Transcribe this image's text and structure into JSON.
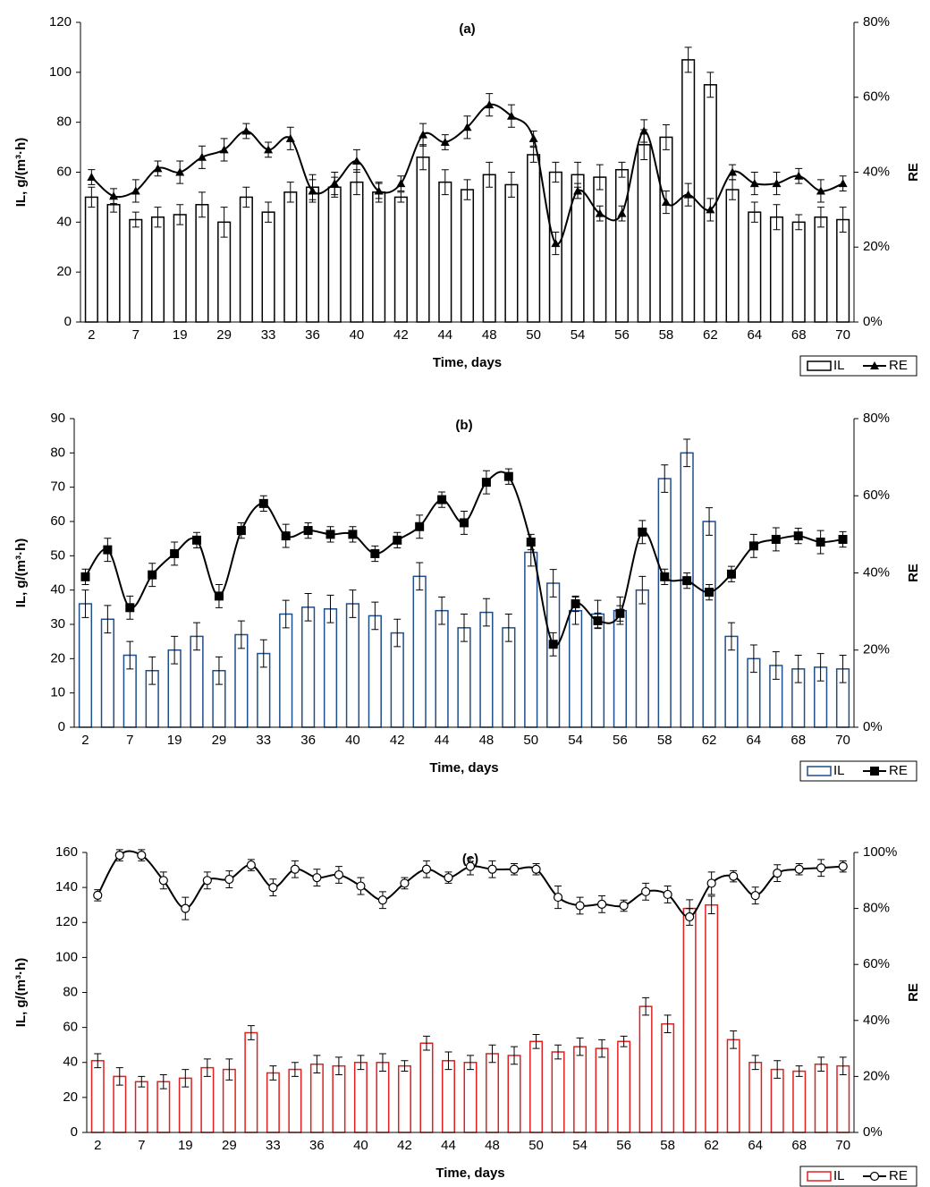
{
  "chart_data": [
    {
      "type": "bar",
      "title": "(a)",
      "x_label": "Time, days",
      "y_label": "IL, g/(m³·h)",
      "y2_label": "RE",
      "categories": [
        "2",
        null,
        "7",
        null,
        "19",
        null,
        "29",
        null,
        "33",
        null,
        "36",
        null,
        "40",
        null,
        "42",
        null,
        "44",
        null,
        "48",
        null,
        "50",
        null,
        "54",
        null,
        "56",
        null,
        "58",
        null,
        "62",
        null,
        "64",
        null,
        "68",
        null,
        "70"
      ],
      "ylim": [
        0,
        120
      ],
      "yticks": [
        0,
        20,
        40,
        60,
        80,
        100,
        120
      ],
      "y2lim": [
        0,
        80
      ],
      "y2ticks": [
        {
          "value": 0,
          "label": "0%"
        },
        {
          "value": 20,
          "label": "20%"
        },
        {
          "value": 40,
          "label": "40%"
        },
        {
          "value": 60,
          "label": "60%"
        },
        {
          "value": 80,
          "label": "80%"
        }
      ],
      "legend": "lower right",
      "series": [
        {
          "name": "IL",
          "type": "bar",
          "color": "#000000",
          "values": [
            50,
            47,
            41,
            42,
            43,
            47,
            40,
            50,
            44,
            52,
            54,
            54,
            56,
            52,
            50,
            66,
            56,
            53,
            59,
            55,
            67,
            60,
            59,
            58,
            61,
            71,
            74,
            105,
            95,
            53,
            44,
            42,
            40,
            42,
            41
          ],
          "errors": [
            4,
            3,
            3,
            4,
            4,
            5,
            6,
            4,
            4,
            4,
            5,
            4,
            5,
            4,
            2,
            5,
            5,
            4,
            5,
            5,
            3,
            4,
            5,
            5,
            3,
            6,
            5,
            5,
            5,
            4,
            4,
            5,
            3,
            4,
            5
          ]
        },
        {
          "name": "RE",
          "type": "line",
          "axis": "y2",
          "color": "#000000",
          "marker": "triangle",
          "values": [
            38.7,
            33.6,
            35,
            41,
            40,
            44,
            46,
            51,
            46,
            49,
            35,
            37,
            43,
            35,
            37,
            50,
            48,
            52,
            58,
            55,
            49,
            21,
            35,
            29,
            29,
            51,
            32,
            34,
            30,
            40,
            37,
            37,
            39,
            35,
            37
          ],
          "errors": [
            2,
            2,
            3,
            2,
            3,
            3,
            3,
            2,
            2,
            3,
            3,
            3,
            3,
            2,
            2,
            3,
            2,
            3,
            3,
            3,
            2,
            3,
            2,
            2,
            2,
            3,
            3,
            3,
            3,
            2,
            3,
            3,
            2,
            3,
            2
          ]
        }
      ]
    },
    {
      "type": "bar",
      "title": "(b)",
      "x_label": "Time, days",
      "y_label": "IL, g/(m³·h)",
      "y2_label": "RE",
      "categories": [
        "2",
        null,
        "7",
        null,
        "19",
        null,
        "29",
        null,
        "33",
        null,
        "36",
        null,
        "40",
        null,
        "42",
        null,
        "44",
        null,
        "48",
        null,
        "50",
        null,
        "54",
        null,
        "56",
        null,
        "58",
        null,
        "62",
        null,
        "64",
        null,
        "68",
        null,
        "70"
      ],
      "ylim": [
        0,
        90
      ],
      "yticks": [
        0,
        10,
        20,
        30,
        40,
        50,
        60,
        70,
        80,
        90
      ],
      "y2lim": [
        0,
        80
      ],
      "y2ticks": [
        {
          "value": 0,
          "label": "0%"
        },
        {
          "value": 20,
          "label": "20%"
        },
        {
          "value": 40,
          "label": "40%"
        },
        {
          "value": 60,
          "label": "60%"
        },
        {
          "value": 80,
          "label": "80%"
        }
      ],
      "legend": "lower right",
      "series": [
        {
          "name": "IL",
          "type": "bar",
          "color": "#1f4e8c",
          "values": [
            36,
            31.5,
            21,
            16.5,
            22.5,
            26.5,
            16.5,
            27,
            21.5,
            33,
            35,
            34.5,
            36,
            32.5,
            27.5,
            44,
            34,
            29,
            33.5,
            29,
            51,
            42,
            34,
            33,
            34,
            40,
            72.5,
            80,
            60,
            26.5,
            20,
            18,
            17,
            17.5,
            17
          ],
          "errors": [
            4,
            4,
            4,
            4,
            4,
            4,
            4,
            4,
            4,
            4,
            4,
            4,
            4,
            4,
            4,
            4,
            4,
            4,
            4,
            4,
            4,
            4,
            4,
            4,
            4,
            4,
            4,
            4,
            4,
            4,
            4,
            4,
            4,
            4,
            4
          ]
        },
        {
          "name": "RE",
          "type": "line",
          "axis": "y2",
          "color": "#000000",
          "marker": "square",
          "values": [
            39,
            46,
            31,
            39.5,
            45,
            48.5,
            34,
            51,
            58,
            49.6,
            51,
            50,
            50,
            45,
            48.5,
            52,
            59,
            53,
            63.5,
            65,
            48,
            21.5,
            32,
            27.6,
            29.5,
            50.6,
            39,
            38,
            35,
            39.7,
            47,
            48.7,
            49.6,
            48,
            48.7
          ],
          "errors": [
            2,
            3,
            3,
            3,
            3,
            2,
            3,
            2,
            2,
            3,
            2,
            2,
            2,
            2,
            2,
            3,
            2,
            3,
            3,
            2,
            2,
            3,
            2,
            2,
            2,
            3,
            2,
            2,
            2,
            2,
            3,
            3,
            2,
            3,
            2
          ]
        }
      ]
    },
    {
      "type": "bar",
      "title": "(c)",
      "x_label": "Time, days",
      "y_label": "IL, g/(m³·h)",
      "y2_label": "RE",
      "categories": [
        "2",
        null,
        "7",
        null,
        "19",
        null,
        "29",
        null,
        "33",
        null,
        "36",
        null,
        "40",
        null,
        "42",
        null,
        "44",
        null,
        "48",
        null,
        "50",
        null,
        "54",
        null,
        "56",
        null,
        "58",
        null,
        "62",
        null,
        "64",
        null,
        "68",
        null,
        "70"
      ],
      "ylim": [
        0,
        160
      ],
      "yticks": [
        0,
        20,
        40,
        60,
        80,
        100,
        120,
        140,
        160
      ],
      "y2lim": [
        0,
        100
      ],
      "y2ticks": [
        {
          "value": 0,
          "label": "0%"
        },
        {
          "value": 20,
          "label": "20%"
        },
        {
          "value": 40,
          "label": "40%"
        },
        {
          "value": 60,
          "label": "60%"
        },
        {
          "value": 80,
          "label": "80%"
        },
        {
          "value": 100,
          "label": "100%"
        }
      ],
      "legend": "lower right",
      "series": [
        {
          "name": "IL",
          "type": "bar",
          "color": "#e02020",
          "values": [
            41,
            32,
            29,
            29,
            31,
            37,
            36,
            57,
            34,
            36,
            39,
            38,
            40,
            40,
            38,
            51,
            41,
            40,
            45,
            44,
            52,
            46,
            49,
            48,
            52,
            72,
            62,
            128,
            130,
            53,
            40,
            36,
            35,
            39,
            38
          ],
          "errors": [
            4,
            5,
            3,
            4,
            5,
            5,
            6,
            4,
            4,
            4,
            5,
            5,
            4,
            5,
            3,
            4,
            5,
            4,
            5,
            5,
            4,
            4,
            5,
            5,
            3,
            5,
            5,
            5,
            5,
            5,
            4,
            5,
            3,
            4,
            5
          ]
        },
        {
          "name": "RE",
          "type": "line",
          "axis": "y2",
          "color": "#000000",
          "marker": "circle",
          "values": [
            84.7,
            99,
            99,
            90,
            80,
            90,
            90.4,
            95.5,
            87.5,
            94,
            91,
            92,
            88,
            83,
            89,
            94,
            91,
            95,
            94,
            94,
            94,
            84,
            81,
            81.5,
            81,
            86,
            85,
            77,
            89,
            91.5,
            84.6,
            92.6,
            94,
            94.5,
            95
          ],
          "errors": [
            2,
            2,
            2,
            3,
            4,
            3,
            3,
            2,
            3,
            3,
            3,
            3,
            3,
            3,
            2,
            3,
            2,
            3,
            3,
            2,
            2,
            4,
            3,
            3,
            2,
            3,
            3,
            3,
            4,
            2,
            3,
            3,
            2,
            3,
            2
          ]
        }
      ]
    }
  ]
}
